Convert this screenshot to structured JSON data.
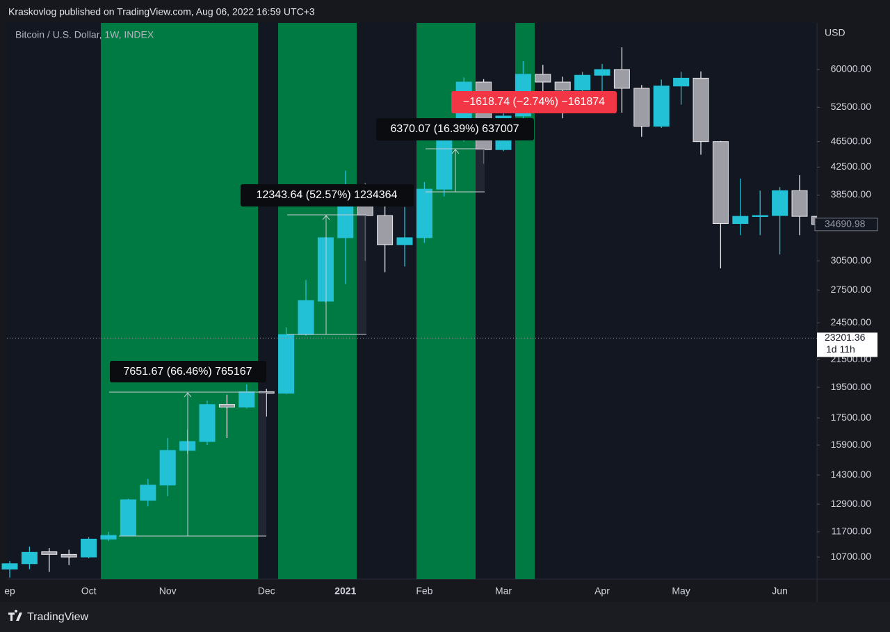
{
  "header": "Kraskovlog published on TradingView.com, Aug 06, 2022 16:59 UTC+3",
  "brand": "TradingView",
  "chart_data": {
    "type": "candlestick",
    "title": "Bitcoin / U.S. Dollar, 1W, INDEX",
    "currency": "USD",
    "log_scale": true,
    "up_color": "#22c1d6",
    "down_color": "#9d9da6",
    "categories": [
      "ep",
      null,
      null,
      null,
      "Oct",
      null,
      null,
      null,
      "Nov",
      null,
      null,
      null,
      null,
      "Dec",
      null,
      null,
      null,
      "2021",
      null,
      null,
      null,
      "Feb",
      null,
      null,
      null,
      "Mar",
      null,
      null,
      null,
      null,
      "Apr",
      null,
      null,
      null,
      "May",
      null,
      null,
      null,
      null,
      "Jun",
      null,
      null
    ],
    "open": [
      10250,
      10450,
      10900,
      10800,
      10700,
      11400,
      11550,
      13080,
      13800,
      15600,
      16100,
      18360,
      18180,
      19200,
      19100,
      23500,
      26450,
      33100,
      37400,
      35800,
      32300,
      33100,
      39300,
      46950,
      57400,
      45200,
      50900,
      59000,
      57400,
      55800,
      58800,
      60000,
      56150,
      49100,
      56600,
      58200,
      46500,
      34800,
      35700,
      35800,
      39100,
      35700
    ],
    "high": [
      10550,
      11100,
      11050,
      10980,
      11480,
      11700,
      13150,
      14100,
      16300,
      16800,
      18600,
      19000,
      19700,
      19400,
      24100,
      28500,
      33200,
      41950,
      40100,
      37700,
      36900,
      40300,
      48100,
      58350,
      58000,
      52600,
      61800,
      61000,
      58500,
      59500,
      61200,
      64900,
      56800,
      57900,
      59500,
      59600,
      46600,
      40800,
      39100,
      39600,
      41300,
      36000
    ],
    "low": [
      9950,
      10250,
      10150,
      10400,
      10650,
      11320,
      11520,
      12800,
      13270,
      15400,
      15900,
      16300,
      18100,
      17580,
      19050,
      23400,
      26300,
      28100,
      30500,
      29300,
      29900,
      32500,
      38300,
      46500,
      43000,
      44950,
      49300,
      53200,
      50500,
      53500,
      55500,
      51500,
      47300,
      48800,
      53000,
      44400,
      29700,
      33400,
      33400,
      31200,
      33400,
      34000
    ],
    "close": [
      10450,
      10880,
      10800,
      10700,
      11400,
      11550,
      13100,
      13800,
      15600,
      16100,
      18350,
      18180,
      19200,
      19100,
      23500,
      26500,
      33100,
      37400,
      35800,
      32300,
      33100,
      39300,
      46950,
      57400,
      45200,
      50900,
      59000,
      57400,
      55800,
      58800,
      60000,
      56150,
      49100,
      56600,
      58200,
      46500,
      34800,
      35700,
      35800,
      39100,
      35700,
      34690.98
    ],
    "ylim": [
      9894,
      70750
    ],
    "yticks": [
      {
        "value": 60000,
        "label": "60000.00"
      },
      {
        "value": 52500,
        "label": "52500.00"
      },
      {
        "value": 46500,
        "label": "46500.00"
      },
      {
        "value": 42500,
        "label": "42500.00"
      },
      {
        "value": 38500,
        "label": "38500.00"
      },
      {
        "value": 30500,
        "label": "30500.00"
      },
      {
        "value": 27500,
        "label": "27500.00"
      },
      {
        "value": 24500,
        "label": "24500.00"
      },
      {
        "value": 21500,
        "label": "21500.00"
      },
      {
        "value": 19500,
        "label": "19500.00"
      },
      {
        "value": 17500,
        "label": "17500.00"
      },
      {
        "value": 15900,
        "label": "15900.00"
      },
      {
        "value": 14300,
        "label": "14300.00"
      },
      {
        "value": 12900,
        "label": "12900.00"
      },
      {
        "value": 11700,
        "label": "11700.00"
      },
      {
        "value": 10700,
        "label": "10700.00"
      }
    ],
    "last_close": 34690.98,
    "current_price": 23201.36,
    "countdown": "1d 11h",
    "annotations": [
      "7651.67 (66.46%) 765167",
      "12343.64 (52.57%) 1234364",
      "6370.07 (16.39%) 637007",
      "−1618.74 (−2.74%) −161874"
    ]
  }
}
